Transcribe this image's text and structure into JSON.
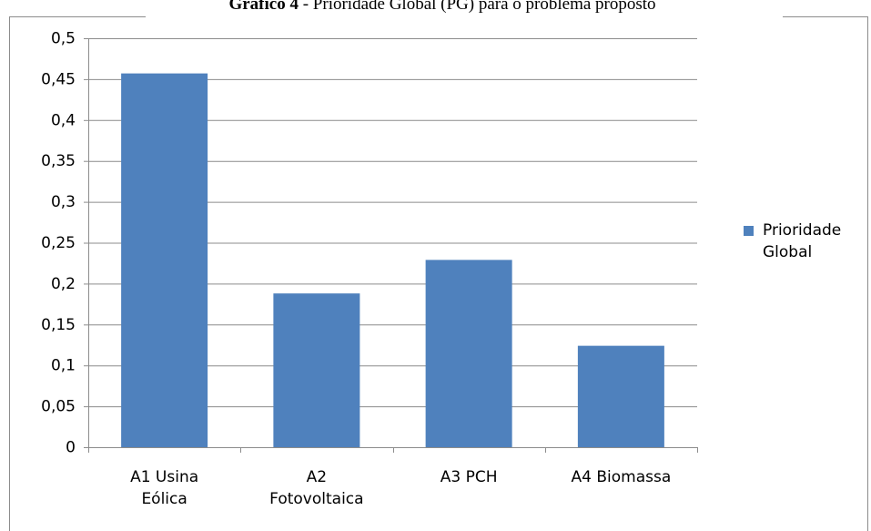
{
  "chart_data": {
    "type": "bar",
    "title_prefix": "Gráfico 4",
    "title": "- Prioridade Global (PG) para o problema proposto",
    "categories": [
      "A1 Usina Eólica",
      "A2 Fotovoltaica",
      "A3 PCH",
      "A4 Biomassa"
    ],
    "series": [
      {
        "name": "Prioridade Global",
        "color": "#4f81bd",
        "values": [
          0.457,
          0.188,
          0.229,
          0.124
        ]
      }
    ],
    "ylim": [
      0,
      0.5
    ],
    "yticks": [
      0,
      {
        "value": 0.05,
        "label": "0,05"
      },
      {
        "value": 0.1,
        "label": "0,1"
      },
      {
        "value": 0.15,
        "label": "0,15"
      },
      {
        "value": 0.2,
        "label": "0,2"
      },
      {
        "value": 0.25,
        "label": "0,25"
      },
      {
        "value": 0.3,
        "label": "0,3"
      },
      {
        "value": 0.35,
        "label": "0,35"
      },
      {
        "value": 0.4,
        "label": "0,4"
      },
      {
        "value": 0.45,
        "label": "0,45"
      },
      {
        "value": 0.5,
        "label": "0,5"
      }
    ],
    "grid": true,
    "legend": "right"
  }
}
